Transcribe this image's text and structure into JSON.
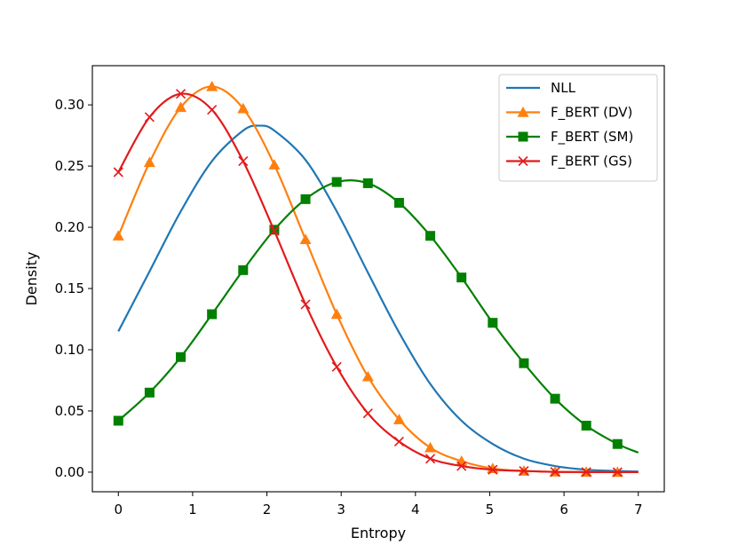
{
  "chart_data": {
    "type": "line",
    "xlabel": "Entropy",
    "ylabel": "Density",
    "xlim": [
      -0.35,
      7.35
    ],
    "ylim": [
      -0.016,
      0.332
    ],
    "xticks": [
      0,
      1,
      2,
      3,
      4,
      5,
      6,
      7
    ],
    "yticks": [
      0.0,
      0.05,
      0.1,
      0.15,
      0.2,
      0.25,
      0.3
    ],
    "xtick_labels": [
      "0",
      "1",
      "2",
      "3",
      "4",
      "5",
      "6",
      "7"
    ],
    "ytick_labels": [
      "0.00",
      "0.05",
      "0.10",
      "0.15",
      "0.20",
      "0.25",
      "0.30"
    ],
    "grid": false,
    "legend_position": "top-right",
    "series": [
      {
        "name": "NLL",
        "color": "#1f77b4",
        "marker": "none",
        "x": [
          0,
          0.42,
          0.84,
          1.26,
          1.68,
          1.9,
          2.1,
          2.52,
          2.94,
          3.36,
          3.78,
          4.2,
          4.62,
          5.04,
          5.46,
          5.88,
          6.3,
          6.72,
          7.0
        ],
        "values": [
          0.115,
          0.164,
          0.213,
          0.254,
          0.279,
          0.283,
          0.279,
          0.255,
          0.213,
          0.163,
          0.114,
          0.072,
          0.042,
          0.023,
          0.011,
          0.005,
          0.002,
          0.001,
          0.0005
        ]
      },
      {
        "name": "F_BERT (DV)",
        "color": "#ff7f0e",
        "marker": "triangle",
        "x": [
          0,
          0.42,
          0.84,
          1.26,
          1.68,
          2.1,
          2.52,
          2.94,
          3.36,
          3.78,
          4.2,
          4.62,
          5.04,
          5.46,
          5.88,
          6.3,
          6.72
        ],
        "values": [
          0.193,
          0.253,
          0.298,
          0.315,
          0.297,
          0.251,
          0.19,
          0.129,
          0.078,
          0.043,
          0.02,
          0.009,
          0.003,
          0.001,
          0.0003,
          0.0001,
          0.0
        ],
        "line_extends_to": 7.0
      },
      {
        "name": "F_BERT (SM)",
        "color": "#008000",
        "marker": "square",
        "x": [
          0,
          0.42,
          0.84,
          1.26,
          1.68,
          2.1,
          2.52,
          2.94,
          3.36,
          3.78,
          4.2,
          4.62,
          5.04,
          5.46,
          5.88,
          6.3,
          6.72
        ],
        "values": [
          0.042,
          0.065,
          0.094,
          0.129,
          0.165,
          0.198,
          0.223,
          0.237,
          0.236,
          0.22,
          0.193,
          0.159,
          0.122,
          0.089,
          0.06,
          0.038,
          0.023
        ],
        "line_extends_to": 7.0,
        "line_end_value": 0.016
      },
      {
        "name": "F_BERT (GS)",
        "color": "#e31a1c",
        "marker": "x",
        "x": [
          0,
          0.42,
          0.84,
          1.26,
          1.68,
          2.1,
          2.52,
          2.94,
          3.36,
          3.78,
          4.2,
          4.62,
          5.04,
          5.46,
          5.88,
          6.3,
          6.72
        ],
        "values": [
          0.245,
          0.29,
          0.309,
          0.296,
          0.254,
          0.197,
          0.137,
          0.086,
          0.048,
          0.025,
          0.011,
          0.005,
          0.002,
          0.001,
          0.0002,
          0.0001,
          0.0
        ],
        "line_extends_to": 7.0
      }
    ]
  }
}
